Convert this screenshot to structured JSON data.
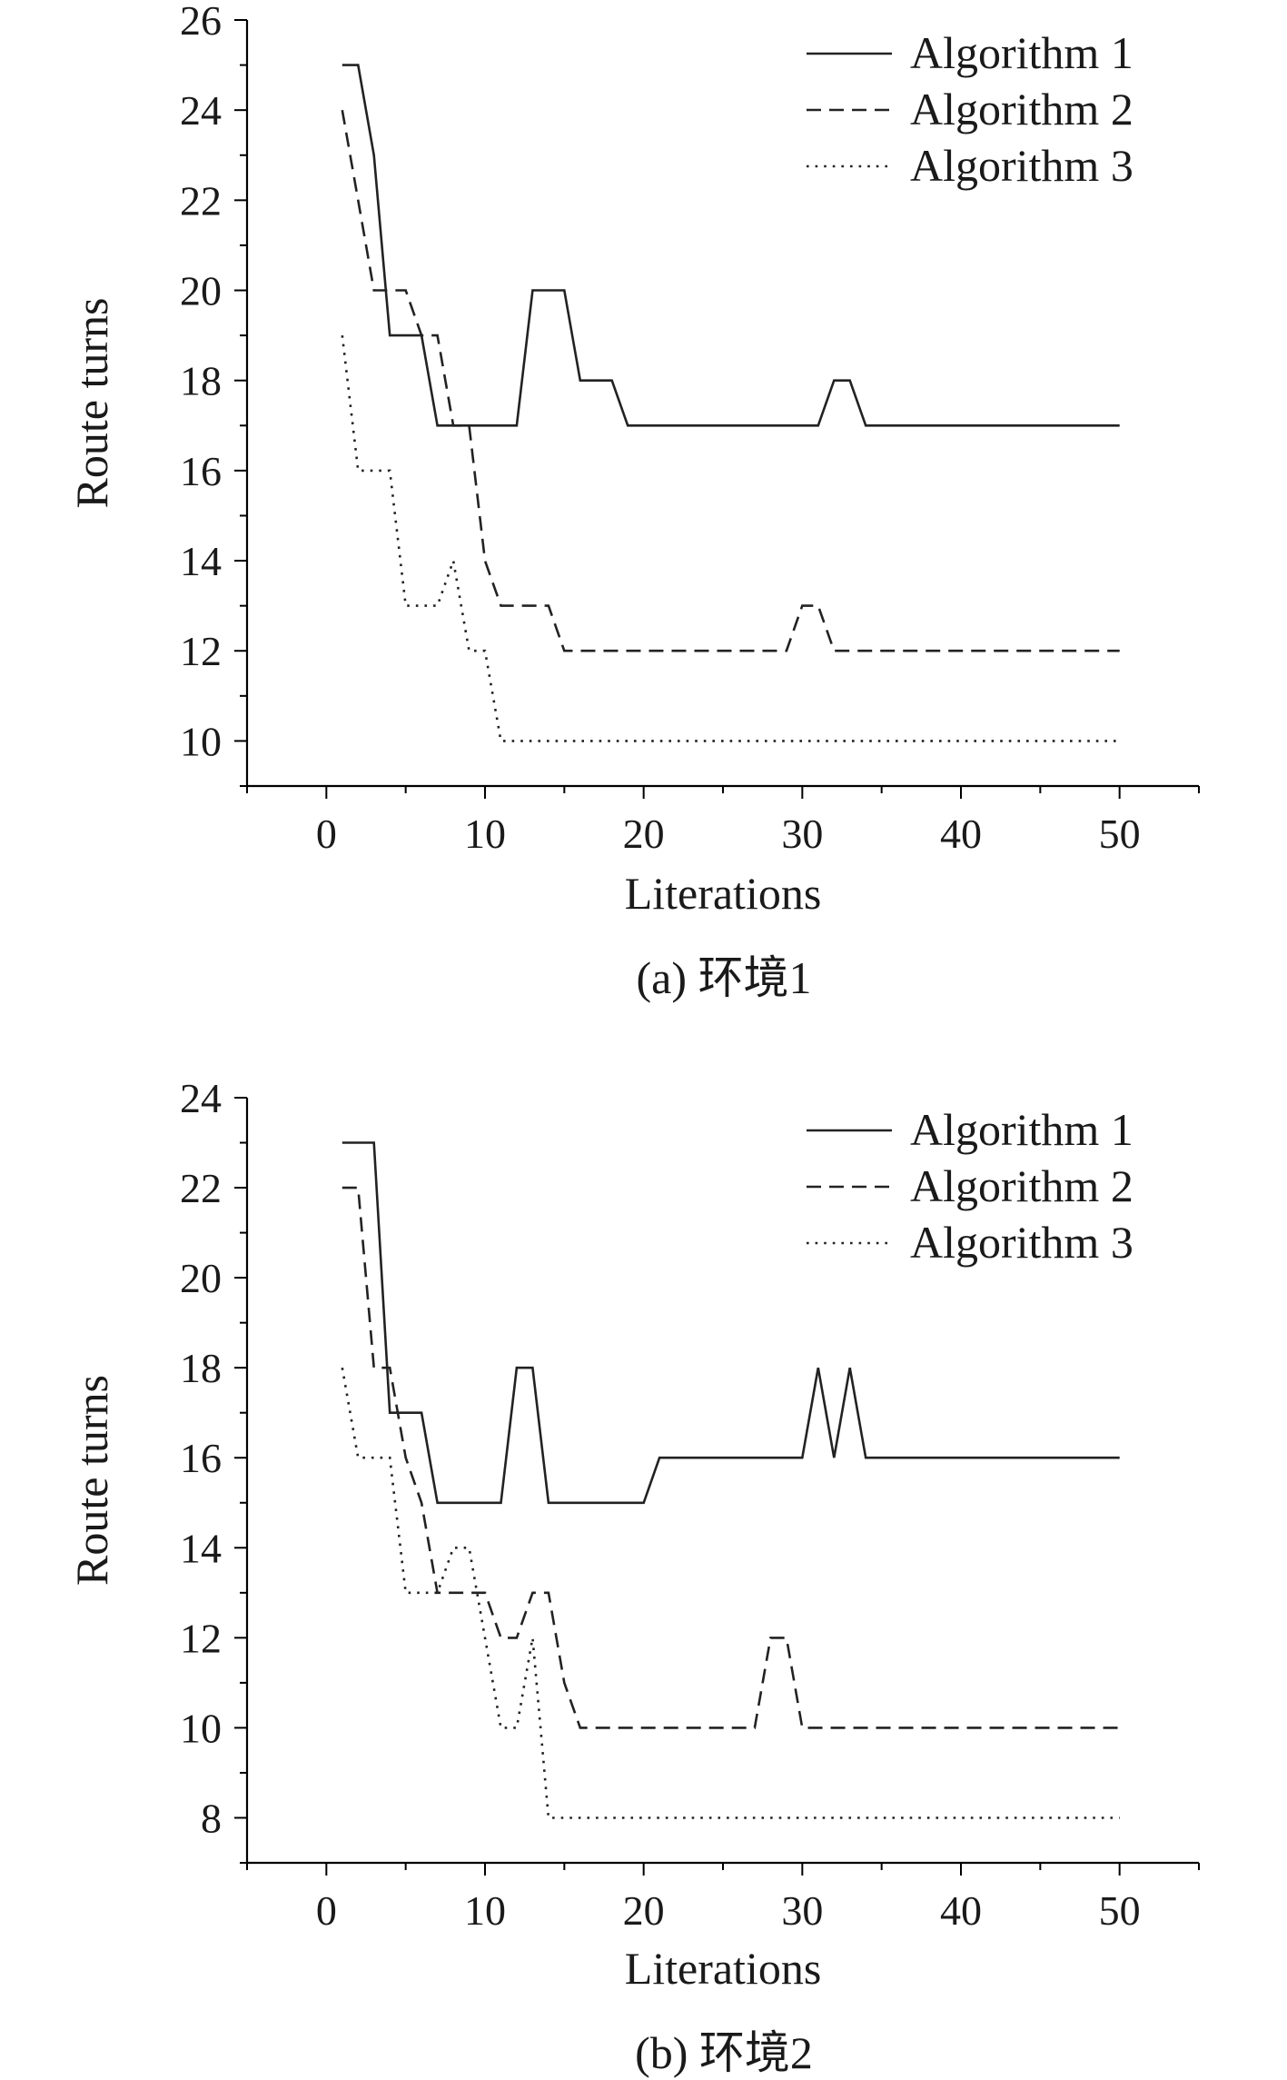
{
  "chart_data": [
    {
      "type": "line",
      "panel": "a",
      "caption": "(a) 环境1",
      "xlabel": "Literations",
      "ylabel": "Route turns",
      "xlim": [
        -5,
        55
      ],
      "ylim": [
        9,
        26
      ],
      "xticks": [
        0,
        10,
        20,
        30,
        40,
        50
      ],
      "yticks": [
        10,
        12,
        14,
        16,
        18,
        20,
        22,
        24,
        26
      ],
      "legend_position": "top-right",
      "series": [
        {
          "name": "Algorithm 1",
          "style": "solid",
          "points": [
            [
              1,
              25
            ],
            [
              2,
              25
            ],
            [
              3,
              23
            ],
            [
              4,
              19
            ],
            [
              5,
              19
            ],
            [
              6,
              19
            ],
            [
              7,
              17
            ],
            [
              8,
              17
            ],
            [
              9,
              17
            ],
            [
              10,
              17
            ],
            [
              11,
              17
            ],
            [
              12,
              17
            ],
            [
              13,
              20
            ],
            [
              14,
              20
            ],
            [
              15,
              20
            ],
            [
              16,
              18
            ],
            [
              17,
              18
            ],
            [
              18,
              18
            ],
            [
              19,
              17
            ],
            [
              20,
              17
            ],
            [
              25,
              17
            ],
            [
              30,
              17
            ],
            [
              31,
              17
            ],
            [
              32,
              18
            ],
            [
              33,
              18
            ],
            [
              34,
              17
            ],
            [
              40,
              17
            ],
            [
              45,
              17
            ],
            [
              50,
              17
            ]
          ]
        },
        {
          "name": "Algorithm 2",
          "style": "dashed",
          "points": [
            [
              1,
              24
            ],
            [
              2,
              22
            ],
            [
              3,
              20
            ],
            [
              4,
              20
            ],
            [
              5,
              20
            ],
            [
              6,
              19
            ],
            [
              7,
              19
            ],
            [
              8,
              17
            ],
            [
              9,
              17
            ],
            [
              10,
              14
            ],
            [
              11,
              13
            ],
            [
              12,
              13
            ],
            [
              13,
              13
            ],
            [
              14,
              13
            ],
            [
              15,
              12
            ],
            [
              20,
              12
            ],
            [
              25,
              12
            ],
            [
              29,
              12
            ],
            [
              30,
              13
            ],
            [
              31,
              13
            ],
            [
              32,
              12
            ],
            [
              35,
              12
            ],
            [
              40,
              12
            ],
            [
              45,
              12
            ],
            [
              50,
              12
            ]
          ]
        },
        {
          "name": "Algorithm 3",
          "style": "dotted",
          "points": [
            [
              1,
              19
            ],
            [
              2,
              16
            ],
            [
              3,
              16
            ],
            [
              4,
              16
            ],
            [
              5,
              13
            ],
            [
              6,
              13
            ],
            [
              7,
              13
            ],
            [
              8,
              14
            ],
            [
              9,
              12
            ],
            [
              10,
              12
            ],
            [
              11,
              10
            ],
            [
              15,
              10
            ],
            [
              20,
              10
            ],
            [
              25,
              10
            ],
            [
              30,
              10
            ],
            [
              35,
              10
            ],
            [
              40,
              10
            ],
            [
              45,
              10
            ],
            [
              50,
              10
            ]
          ]
        }
      ]
    },
    {
      "type": "line",
      "panel": "b",
      "caption": "(b) 环境2",
      "xlabel": "Literations",
      "ylabel": "Route turns",
      "xlim": [
        -5,
        55
      ],
      "ylim": [
        7,
        24
      ],
      "xticks": [
        0,
        10,
        20,
        30,
        40,
        50
      ],
      "yticks": [
        8,
        10,
        12,
        14,
        16,
        18,
        20,
        22,
        24
      ],
      "legend_position": "top-right",
      "series": [
        {
          "name": "Algorithm 1",
          "style": "solid",
          "points": [
            [
              1,
              23
            ],
            [
              2,
              23
            ],
            [
              3,
              23
            ],
            [
              4,
              17
            ],
            [
              5,
              17
            ],
            [
              6,
              17
            ],
            [
              7,
              15
            ],
            [
              8,
              15
            ],
            [
              9,
              15
            ],
            [
              10,
              15
            ],
            [
              11,
              15
            ],
            [
              12,
              18
            ],
            [
              13,
              18
            ],
            [
              14,
              15
            ],
            [
              15,
              15
            ],
            [
              20,
              15
            ],
            [
              21,
              16
            ],
            [
              25,
              16
            ],
            [
              30,
              16
            ],
            [
              31,
              18
            ],
            [
              32,
              16
            ],
            [
              33,
              18
            ],
            [
              34,
              16
            ],
            [
              40,
              16
            ],
            [
              45,
              16
            ],
            [
              50,
              16
            ]
          ]
        },
        {
          "name": "Algorithm 2",
          "style": "dashed",
          "points": [
            [
              1,
              22
            ],
            [
              2,
              22
            ],
            [
              3,
              18
            ],
            [
              4,
              18
            ],
            [
              5,
              16
            ],
            [
              6,
              15
            ],
            [
              7,
              13
            ],
            [
              8,
              13
            ],
            [
              9,
              13
            ],
            [
              10,
              13
            ],
            [
              11,
              12
            ],
            [
              12,
              12
            ],
            [
              13,
              13
            ],
            [
              14,
              13
            ],
            [
              15,
              11
            ],
            [
              16,
              10
            ],
            [
              20,
              10
            ],
            [
              25,
              10
            ],
            [
              27,
              10
            ],
            [
              28,
              12
            ],
            [
              29,
              12
            ],
            [
              30,
              10
            ],
            [
              35,
              10
            ],
            [
              40,
              10
            ],
            [
              45,
              10
            ],
            [
              50,
              10
            ]
          ]
        },
        {
          "name": "Algorithm 3",
          "style": "dotted",
          "points": [
            [
              1,
              18
            ],
            [
              2,
              16
            ],
            [
              3,
              16
            ],
            [
              4,
              16
            ],
            [
              5,
              13
            ],
            [
              6,
              13
            ],
            [
              7,
              13
            ],
            [
              8,
              14
            ],
            [
              9,
              14
            ],
            [
              10,
              12
            ],
            [
              11,
              10
            ],
            [
              12,
              10
            ],
            [
              13,
              12
            ],
            [
              14,
              8
            ],
            [
              15,
              8
            ],
            [
              20,
              8
            ],
            [
              25,
              8
            ],
            [
              30,
              8
            ],
            [
              35,
              8
            ],
            [
              40,
              8
            ],
            [
              45,
              8
            ],
            [
              50,
              8
            ]
          ]
        }
      ]
    }
  ]
}
